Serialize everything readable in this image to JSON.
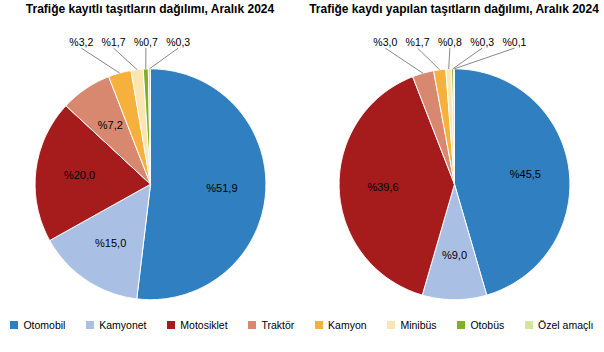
{
  "chart_data": [
    {
      "type": "pie",
      "title": "Trafiğe kayıtlı taşıtların dağılımı, Aralık 2024",
      "categories": [
        "Otomobil",
        "Kamyonet",
        "Motosiklet",
        "Traktör",
        "Kamyon",
        "Minibüs",
        "Otobüs",
        "Özel amaçlı"
      ],
      "values": [
        51.9,
        15.0,
        20.0,
        7.2,
        3.2,
        1.7,
        0.7,
        0.3
      ],
      "value_labels": [
        "%51,9",
        "%15,0",
        "%20,0",
        "%7,2",
        "%3,2",
        "%1,7",
        "%0,7",
        "%0,3"
      ],
      "colors": [
        "#2f7fc1",
        "#a9bfe3",
        "#a61c1c",
        "#d98870",
        "#f5b13b",
        "#fde5b0",
        "#7eb02b",
        "#d6e2a0"
      ],
      "data_labels": true,
      "legend": "bottom"
    },
    {
      "type": "pie",
      "title": "Trafiğe kaydı yapılan taşıtların dağılımı, Aralık 2024",
      "categories": [
        "Otomobil",
        "Kamyonet",
        "Motosiklet",
        "Traktör",
        "Kamyon",
        "Minibüs",
        "Otobüs",
        "Özel amaçlı"
      ],
      "values": [
        45.5,
        9.0,
        39.6,
        3.0,
        1.7,
        0.8,
        0.3,
        0.1
      ],
      "value_labels": [
        "%45,5",
        "%9,0",
        "%39,6",
        "%3,0",
        "%1,7",
        "%0,8",
        "%0,3",
        "%0,1"
      ],
      "colors": [
        "#2f7fc1",
        "#a9bfe3",
        "#a61c1c",
        "#d98870",
        "#f5b13b",
        "#fde5b0",
        "#7eb02b",
        "#d6e2a0"
      ],
      "data_labels": true,
      "legend": "bottom"
    }
  ]
}
